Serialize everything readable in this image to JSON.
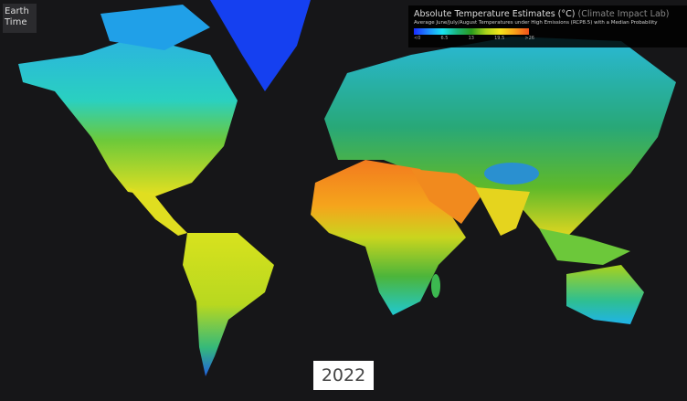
{
  "logo": {
    "line1": "Earth",
    "line2": "Time"
  },
  "legend": {
    "title": "Absolute Temperature Estimates (°C)",
    "source": "(Climate Impact Lab)",
    "subtitle": "Average June/July/August Temperatures under High Emissions (RCP8.5) with a Median Probability",
    "ticks": [
      "<0",
      "6.5",
      "13",
      "19.5",
      ">26"
    ],
    "colors": [
      "#1a2cff",
      "#19e3f0",
      "#2a9b1e",
      "#f6e51b",
      "#f0501a"
    ]
  },
  "year": "2022",
  "colors": {
    "background": "#161618",
    "ocean": "#161618"
  }
}
